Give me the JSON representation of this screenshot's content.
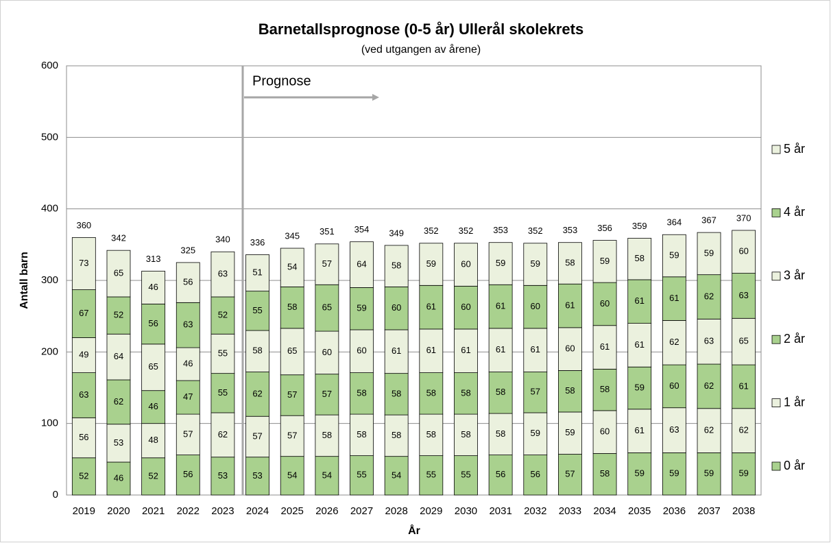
{
  "chart_data": {
    "type": "stacked_bar",
    "title": "Barnetallsprognose (0-5 år) Ullerål skolekrets",
    "subtitle": "(ved utgangen av årene)",
    "x_label": "År",
    "y_label": "Antall barn",
    "annotation": "Prognose",
    "categories": [
      "2019",
      "2020",
      "2021",
      "2022",
      "2023",
      "2024",
      "2025",
      "2026",
      "2027",
      "2028",
      "2029",
      "2030",
      "2031",
      "2032",
      "2033",
      "2034",
      "2035",
      "2036",
      "2037",
      "2038"
    ],
    "series": [
      {
        "name": "0 år",
        "color": "#a9d18e",
        "values": [
          52,
          46,
          52,
          56,
          53,
          53,
          54,
          54,
          55,
          54,
          55,
          55,
          56,
          56,
          57,
          58,
          59,
          59,
          59,
          59
        ]
      },
      {
        "name": "1 år",
        "color": "#ebf1de",
        "values": [
          56,
          53,
          48,
          57,
          62,
          57,
          57,
          58,
          58,
          58,
          58,
          58,
          58,
          59,
          59,
          60,
          61,
          63,
          62,
          62
        ]
      },
      {
        "name": "2 år",
        "color": "#a9d18e",
        "values": [
          63,
          62,
          46,
          47,
          55,
          62,
          57,
          57,
          58,
          58,
          58,
          58,
          58,
          57,
          58,
          58,
          59,
          60,
          62,
          61
        ]
      },
      {
        "name": "3 år",
        "color": "#ebf1de",
        "values": [
          49,
          64,
          65,
          46,
          55,
          58,
          65,
          60,
          60,
          61,
          61,
          61,
          61,
          61,
          60,
          61,
          61,
          62,
          63,
          65
        ]
      },
      {
        "name": "4 år",
        "color": "#a9d18e",
        "values": [
          67,
          52,
          56,
          63,
          52,
          55,
          58,
          65,
          59,
          60,
          61,
          60,
          61,
          60,
          61,
          60,
          61,
          61,
          62,
          63
        ]
      },
      {
        "name": "5 år",
        "color": "#ebf1de",
        "values": [
          73,
          65,
          46,
          56,
          63,
          51,
          54,
          57,
          64,
          58,
          59,
          60,
          59,
          59,
          58,
          59,
          58,
          59,
          59,
          60
        ]
      }
    ],
    "totals": [
      360,
      342,
      313,
      325,
      340,
      336,
      345,
      351,
      354,
      349,
      352,
      352,
      353,
      352,
      353,
      356,
      359,
      364,
      367,
      370
    ],
    "ylim": [
      0,
      600
    ],
    "yticks": [
      0,
      100,
      200,
      300,
      400,
      500,
      600
    ],
    "grid": true,
    "legend": "right"
  }
}
